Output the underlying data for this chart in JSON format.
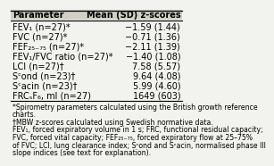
{
  "title_left": "Parameter",
  "title_right": "Mean (SD) z-scores",
  "rows": [
    [
      "FEV₁ (n=27)*",
      "−1.59 (1.44)"
    ],
    [
      "FVC (n=27)*",
      "−0.71 (1.36)"
    ],
    [
      "FEF₂₅₋₇₅ (n=27)*",
      "−2.11 (1.39)"
    ],
    [
      "FEV₁/FVC ratio (n=27)*",
      "−1.40 (1.08)"
    ],
    [
      "LCI (n=27)†",
      "7.58 (5.57)"
    ],
    [
      "Sᶜond (n=23)†",
      "9.64 (4.08)"
    ],
    [
      "Sᶜacin (n=23)†",
      "5.99 (4.60)"
    ],
    [
      "FRCₛF₆, ml (n=27)",
      "1649 (603)"
    ]
  ],
  "footnotes": [
    "*Spirometry parameters calculated using the British growth reference",
    "charts.",
    "†MBW z-scores calculated using Swedish normative data.",
    "FEV₁, forced expiratory volume in 1 s; FRC, functional residual capacity;",
    "FVC, forced vital capacity; FEF₂₅₋₇₅, forced expiratory flow at 25–75%",
    "of FVC; LCI, lung clearance index; Sᶜond and Sᶜacin, normalised phase III",
    "slope indices (see text for explanation)."
  ],
  "bg_color": "#f2f2ee",
  "header_bg": "#d0d0c8",
  "table_font_size": 7.0,
  "footnote_font_size": 5.6
}
